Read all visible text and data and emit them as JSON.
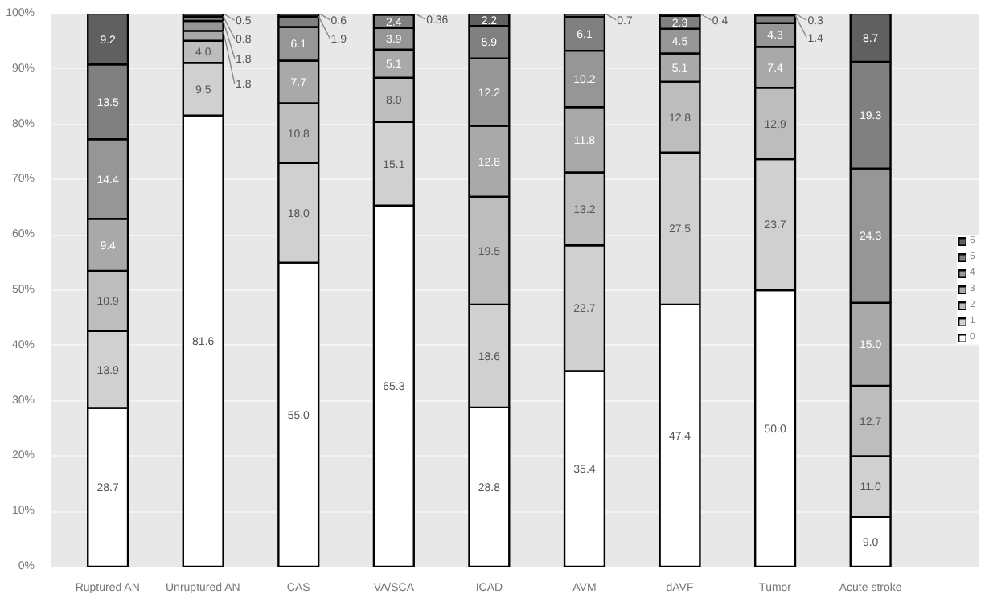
{
  "chart_data": {
    "type": "bar",
    "stacked": true,
    "categories": [
      "Ruptured AN",
      "Unruptured AN",
      "CAS",
      "VA/SCA",
      "ICAD",
      "AVM",
      "dAVF",
      "Tumor",
      "Acute stroke"
    ],
    "ylim": [
      0,
      100
    ],
    "yticks": [
      {
        "value": 0,
        "label": "0%"
      },
      {
        "value": 10,
        "label": "10%"
      },
      {
        "value": 20,
        "label": "20%"
      },
      {
        "value": 30,
        "label": "30%"
      },
      {
        "value": 40,
        "label": "40%"
      },
      {
        "value": 50,
        "label": "50%"
      },
      {
        "value": 60,
        "label": "60%"
      },
      {
        "value": 70,
        "label": "70%"
      },
      {
        "value": 80,
        "label": "80%"
      },
      {
        "value": 90,
        "label": "90%"
      },
      {
        "value": 100,
        "label": "100%"
      }
    ],
    "grid": "y",
    "legend": "right",
    "data_labels": true,
    "series": [
      {
        "name": "0",
        "color": "#ffffff",
        "values": [
          28.7,
          81.6,
          55.0,
          65.3,
          28.8,
          35.4,
          47.4,
          50.0,
          9.0
        ],
        "value_labels": [
          "28.7",
          "81.6",
          "55.0",
          "65.3",
          "28.8",
          "35.4",
          "47.4",
          "50.0",
          "9.0"
        ]
      },
      {
        "name": "1",
        "color": "#d0d0d0",
        "values": [
          13.9,
          9.5,
          18.0,
          15.1,
          18.6,
          22.7,
          27.5,
          23.7,
          11.0
        ],
        "value_labels": [
          "13.9",
          "9.5",
          "18.0",
          "15.1",
          "18.6",
          "22.7",
          "27.5",
          "23.7",
          "11.0"
        ]
      },
      {
        "name": "2",
        "color": "#bdbdbd",
        "values": [
          10.9,
          4.0,
          10.8,
          8.0,
          19.5,
          13.2,
          12.8,
          12.9,
          12.7
        ],
        "value_labels": [
          "10.9",
          "4.0",
          "10.8",
          "8.0",
          "19.5",
          "13.2",
          "12.8",
          "12.9",
          "12.7"
        ]
      },
      {
        "name": "3",
        "color": "#a9a9a9",
        "values": [
          9.4,
          1.8,
          7.7,
          5.1,
          12.8,
          11.8,
          5.1,
          7.4,
          15.0
        ],
        "value_labels": [
          "9.4",
          "1.8",
          "7.7",
          "5.1",
          "12.8",
          "11.8",
          "5.1",
          "7.4",
          "15.0"
        ]
      },
      {
        "name": "4",
        "color": "#969696",
        "values": [
          14.4,
          1.8,
          6.1,
          3.9,
          12.2,
          10.2,
          4.5,
          4.3,
          24.3
        ],
        "value_labels": [
          "14.4",
          "1.8",
          "6.1",
          "3.9",
          "12.2",
          "10.2",
          "4.5",
          "4.3",
          "24.3"
        ]
      },
      {
        "name": "5",
        "color": "#808080",
        "values": [
          13.5,
          0.8,
          1.9,
          2.4,
          5.9,
          6.1,
          2.3,
          1.4,
          19.3
        ],
        "value_labels": [
          "13.5",
          "0.8",
          "1.9",
          "2.4",
          "5.9",
          "6.1",
          "2.3",
          "1.4",
          "19.3"
        ]
      },
      {
        "name": "6",
        "color": "#606060",
        "values": [
          9.2,
          0.5,
          0.6,
          0.36,
          2.2,
          0.7,
          0.4,
          0.3,
          8.7
        ],
        "value_labels": [
          "9.2",
          "0.5",
          "0.6",
          "0.36",
          "2.2",
          "0.7",
          "0.4",
          "0.3",
          "8.7"
        ]
      }
    ]
  }
}
